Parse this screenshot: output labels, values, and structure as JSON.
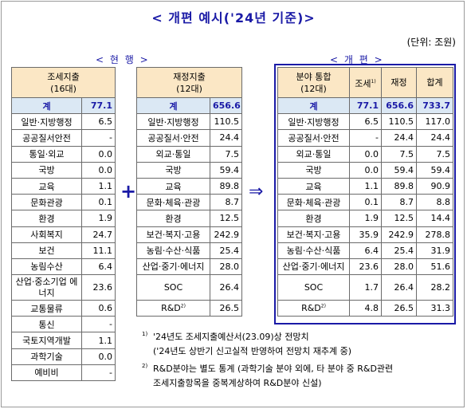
{
  "title": "< 개편 예시('24년 기준)>",
  "unit": "(단위: 조원)",
  "labels": {
    "current": "< 현 행 >",
    "reform": "< 개 편 >"
  },
  "symbols": {
    "plus": "+",
    "arrow": "⇒"
  },
  "table1": {
    "header_line1": "조세지출",
    "header_line2": "(16대)",
    "rows": [
      {
        "name": "계",
        "value": "77.1"
      },
      {
        "name": "일반·지방행정",
        "value": "6.5"
      },
      {
        "name": "공공질서안전",
        "value": "-"
      },
      {
        "name": "통일·외교",
        "value": "0.0"
      },
      {
        "name": "국방",
        "value": "0.0"
      },
      {
        "name": "교육",
        "value": "1.1"
      },
      {
        "name": "문화관광",
        "value": "0.1"
      },
      {
        "name": "환경",
        "value": "1.9"
      },
      {
        "name": "사회복지",
        "value": "24.7"
      },
      {
        "name": "보건",
        "value": "11.1"
      },
      {
        "name": "농림수산",
        "value": "6.4"
      },
      {
        "name": "산업·중소기업 에너지",
        "value": "23.6"
      },
      {
        "name": "교통물류",
        "value": "0.6"
      },
      {
        "name": "통신",
        "value": "-"
      },
      {
        "name": "국토지역개발",
        "value": "1.1"
      },
      {
        "name": "과학기술",
        "value": "0.0"
      },
      {
        "name": "예비비",
        "value": "-"
      }
    ]
  },
  "table2": {
    "header_line1": "재정지출",
    "header_line2": "(12대)",
    "rows": [
      {
        "name": "계",
        "value": "656.6"
      },
      {
        "name": "일반·지방행정",
        "value": "110.5"
      },
      {
        "name": "공공질서·안전",
        "value": "24.4"
      },
      {
        "name": "외교·통일",
        "value": "7.5"
      },
      {
        "name": "국방",
        "value": "59.4"
      },
      {
        "name": "교육",
        "value": "89.8"
      },
      {
        "name": "문화·체육·관광",
        "value": "8.7"
      },
      {
        "name": "환경",
        "value": "12.5"
      },
      {
        "name": "보건·복지·고용",
        "value": "242.9"
      },
      {
        "name": "농림·수산·식품",
        "value": "25.4"
      },
      {
        "name": "산업·중기·에너지",
        "value": "28.0"
      },
      {
        "name": "SOC",
        "value": "26.4"
      },
      {
        "name": "R&D",
        "sup": "2)",
        "value": "26.5"
      }
    ]
  },
  "table3": {
    "header_line1": "분야 통합",
    "header_line2": "(12대)",
    "col_tax": "조세",
    "col_tax_sup": "1)",
    "col_fiscal": "재정",
    "col_sum": "합계",
    "rows": [
      {
        "name": "계",
        "tax": "77.1",
        "fiscal": "656.6",
        "sum": "733.7"
      },
      {
        "name": "일반·지방행정",
        "tax": "6.5",
        "fiscal": "110.5",
        "sum": "117.0"
      },
      {
        "name": "공공질서·안전",
        "tax": "-",
        "fiscal": "24.4",
        "sum": "24.4"
      },
      {
        "name": "외교·통일",
        "tax": "0.0",
        "fiscal": "7.5",
        "sum": "7.5"
      },
      {
        "name": "국방",
        "tax": "0.0",
        "fiscal": "59.4",
        "sum": "59.4"
      },
      {
        "name": "교육",
        "tax": "1.1",
        "fiscal": "89.8",
        "sum": "90.9"
      },
      {
        "name": "문화·체육·관광",
        "tax": "0.1",
        "fiscal": "8.7",
        "sum": "8.8"
      },
      {
        "name": "환경",
        "tax": "1.9",
        "fiscal": "12.5",
        "sum": "14.4"
      },
      {
        "name": "보건·복지·고용",
        "tax": "35.9",
        "fiscal": "242.9",
        "sum": "278.8"
      },
      {
        "name": "농림·수산·식품",
        "tax": "6.4",
        "fiscal": "25.4",
        "sum": "31.9"
      },
      {
        "name": "산업·중기·에너지",
        "tax": "23.6",
        "fiscal": "28.0",
        "sum": "51.6"
      },
      {
        "name": "SOC",
        "tax": "1.7",
        "fiscal": "26.4",
        "sum": "28.2"
      },
      {
        "name": "R&D",
        "sup": "2)",
        "tax": "4.8",
        "fiscal": "26.5",
        "sum": "31.3"
      }
    ]
  },
  "footnotes": [
    {
      "mark": "1)",
      "line1": "'24년도 조세지출예산서(23.09)상 전망치",
      "line2": "('24년도 상반기 신고실적 반영하여 전망치 재추계 중)"
    },
    {
      "mark": "2)",
      "line1": "R&D분야는 별도 통계 (과학기술 분야 외에, 타 분야 중 R&D관련",
      "line2": "조세지출항목을 중복계상하여 R&D분야 신설)"
    }
  ]
}
